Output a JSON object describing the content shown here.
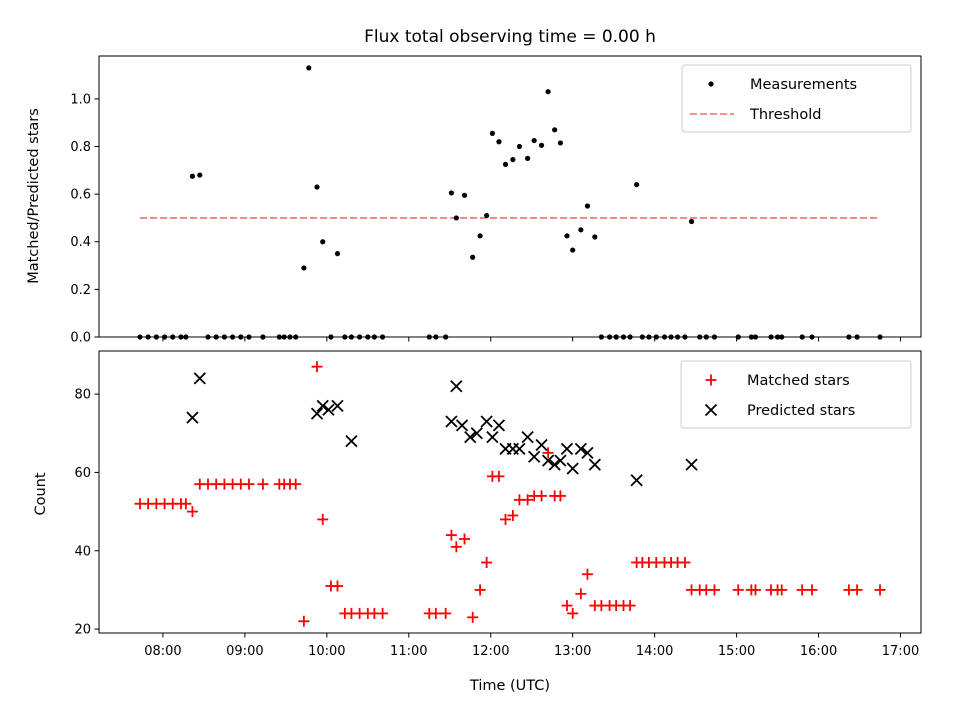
{
  "chart_data": [
    {
      "type": "scatter",
      "title": "Flux total observing time = 0.00 h",
      "xlabel": "",
      "ylabel": "Matched/Predicted stars",
      "xlim": [
        7.22,
        17.25
      ],
      "ylim": [
        0,
        1.18
      ],
      "yticks": [
        "0.0",
        "0.2",
        "0.4",
        "0.6",
        "0.8",
        "1.0"
      ],
      "ytick_values": [
        0,
        0.2,
        0.4,
        0.6,
        0.8,
        1.0
      ],
      "legend_position": "top-right",
      "series": [
        {
          "name": "Measurements",
          "marker": "dot",
          "color": "#000000",
          "x": [
            7.72,
            7.82,
            7.92,
            8.02,
            8.12,
            8.22,
            8.28,
            8.36,
            8.45,
            8.55,
            8.65,
            8.75,
            8.85,
            8.95,
            9.05,
            9.22,
            9.42,
            9.48,
            9.55,
            9.62,
            9.72,
            9.78,
            9.88,
            9.95,
            10.05,
            10.13,
            10.22,
            10.3,
            10.4,
            10.5,
            10.58,
            10.68,
            11.25,
            11.33,
            11.45,
            11.52,
            11.58,
            11.68,
            11.78,
            11.87,
            11.95,
            12.02,
            12.1,
            12.18,
            12.27,
            12.35,
            12.45,
            12.53,
            12.62,
            12.7,
            12.78,
            12.85,
            12.93,
            13.0,
            13.1,
            13.18,
            13.27,
            13.35,
            13.45,
            13.53,
            13.62,
            13.7,
            13.78,
            13.85,
            13.93,
            14.02,
            14.12,
            14.2,
            14.28,
            14.37,
            14.45,
            14.55,
            14.63,
            14.73,
            15.02,
            15.18,
            15.23,
            15.42,
            15.5,
            15.55,
            15.8,
            15.92,
            16.37,
            16.47,
            16.75
          ],
          "values": [
            0,
            0,
            0,
            0,
            0,
            0,
            0,
            0.675,
            0.68,
            0,
            0,
            0,
            0,
            0,
            0,
            0,
            0,
            0,
            0,
            0,
            0.29,
            1.13,
            0.63,
            0.4,
            0,
            0.35,
            0,
            0,
            0,
            0,
            0,
            0,
            0,
            0,
            0,
            0.605,
            0.5,
            0.595,
            0.335,
            0.425,
            0.51,
            0.855,
            0.82,
            0.725,
            0.745,
            0.8,
            0.75,
            0.825,
            0.805,
            1.03,
            0.87,
            0.815,
            0.425,
            0.365,
            0.45,
            0.55,
            0.42,
            0,
            0,
            0,
            0,
            0,
            0.64,
            0,
            0,
            0,
            0,
            0,
            0,
            0,
            0.485,
            0,
            0,
            0,
            0,
            0,
            0,
            0,
            0,
            0,
            0,
            0,
            0,
            0,
            0
          ]
        },
        {
          "name": "Threshold",
          "marker": "dashed-line",
          "color": "#ff7f7f",
          "x": [
            7.72,
            16.75
          ],
          "values": [
            0.5,
            0.5
          ]
        }
      ]
    },
    {
      "type": "scatter",
      "xlabel": "Time (UTC)",
      "ylabel": "Count",
      "xlim": [
        7.22,
        17.25
      ],
      "ylim": [
        19,
        91
      ],
      "xticks": [
        "08:00",
        "09:00",
        "10:00",
        "11:00",
        "12:00",
        "13:00",
        "14:00",
        "15:00",
        "16:00",
        "17:00"
      ],
      "xtick_values": [
        8,
        9,
        10,
        11,
        12,
        13,
        14,
        15,
        16,
        17
      ],
      "yticks": [
        "20",
        "40",
        "60",
        "80"
      ],
      "ytick_values": [
        20,
        40,
        60,
        80
      ],
      "legend_position": "top-right",
      "series": [
        {
          "name": "Matched stars",
          "marker": "plus",
          "color": "#ff0000",
          "x": [
            7.72,
            7.82,
            7.92,
            8.02,
            8.12,
            8.22,
            8.28,
            8.36,
            8.45,
            8.55,
            8.65,
            8.75,
            8.85,
            8.95,
            9.05,
            9.22,
            9.42,
            9.48,
            9.55,
            9.62,
            9.72,
            9.88,
            9.95,
            10.05,
            10.13,
            10.22,
            10.3,
            10.4,
            10.5,
            10.58,
            10.68,
            11.25,
            11.33,
            11.45,
            11.52,
            11.58,
            11.68,
            11.78,
            11.87,
            11.95,
            12.02,
            12.1,
            12.18,
            12.27,
            12.35,
            12.45,
            12.53,
            12.62,
            12.7,
            12.78,
            12.85,
            12.93,
            13.0,
            13.1,
            13.18,
            13.27,
            13.35,
            13.45,
            13.53,
            13.62,
            13.7,
            13.78,
            13.85,
            13.93,
            14.02,
            14.12,
            14.2,
            14.28,
            14.37,
            14.45,
            14.55,
            14.63,
            14.73,
            15.02,
            15.18,
            15.23,
            15.42,
            15.5,
            15.55,
            15.8,
            15.92,
            16.37,
            16.47,
            16.75
          ],
          "values": [
            52,
            52,
            52,
            52,
            52,
            52,
            52,
            50,
            57,
            57,
            57,
            57,
            57,
            57,
            57,
            57,
            57,
            57,
            57,
            57,
            22,
            87,
            48,
            31,
            31,
            24,
            24,
            24,
            24,
            24,
            24,
            24,
            24,
            24,
            44,
            41,
            43,
            23,
            30,
            37,
            59,
            59,
            48,
            49,
            53,
            53,
            54,
            54,
            65,
            54,
            54,
            26,
            24,
            29,
            34,
            26,
            26,
            26,
            26,
            26,
            26,
            37,
            37,
            37,
            37,
            37,
            37,
            37,
            37,
            30,
            30,
            30,
            30,
            30,
            30,
            30,
            30,
            30,
            30,
            30,
            30,
            30,
            30,
            30
          ]
        },
        {
          "name": "Predicted stars",
          "marker": "x",
          "color": "#000000",
          "x": [
            8.36,
            8.45,
            9.88,
            9.95,
            10.02,
            10.13,
            10.3,
            11.52,
            11.58,
            11.65,
            11.75,
            11.83,
            11.95,
            12.02,
            12.1,
            12.18,
            12.27,
            12.35,
            12.45,
            12.53,
            12.62,
            12.7,
            12.78,
            12.85,
            12.93,
            13.0,
            13.1,
            13.18,
            13.27,
            13.78,
            14.45
          ],
          "values": [
            74,
            84,
            75,
            77,
            76,
            77,
            68,
            73,
            82,
            72,
            69,
            70,
            73,
            69,
            72,
            66,
            66,
            66,
            69,
            64,
            67,
            63,
            62,
            63,
            66,
            61,
            66,
            65,
            62,
            58,
            62
          ]
        }
      ]
    }
  ]
}
